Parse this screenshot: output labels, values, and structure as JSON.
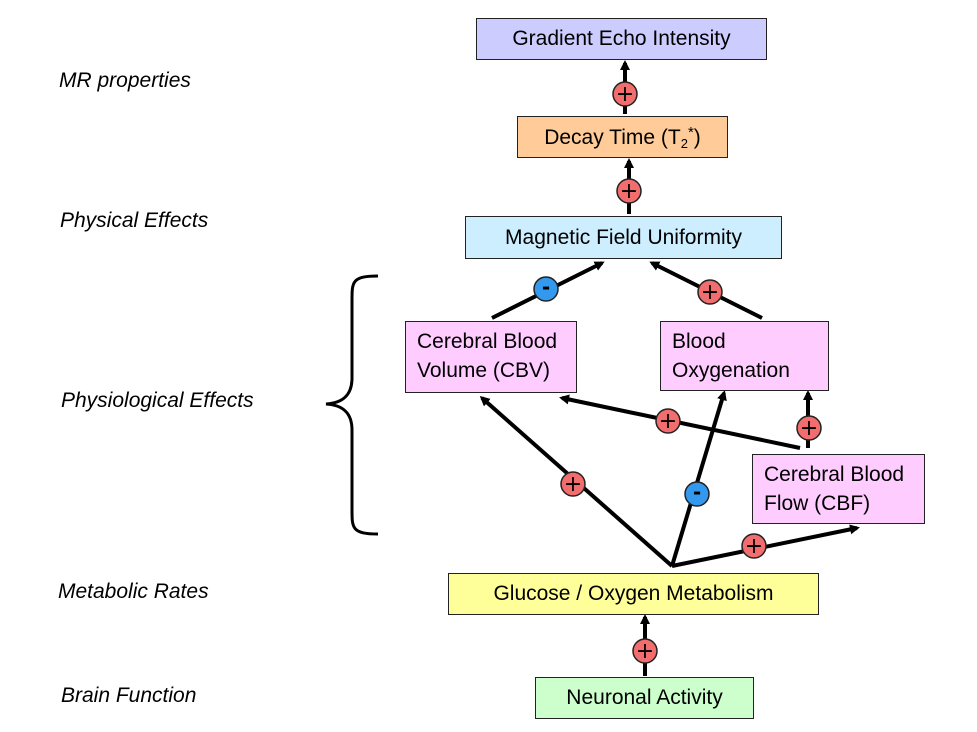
{
  "categories": {
    "mr": "MR properties",
    "physical": "Physical Effects",
    "physiological": "Physiological Effects",
    "metabolic": "Metabolic Rates",
    "brain": "Brain Function"
  },
  "nodes": {
    "gradient": "Gradient Echo Intensity",
    "decay": {
      "prefix": "Decay Time (T",
      "sub": "2",
      "sup": "*",
      "suffix": ")"
    },
    "magnetic": "Magnetic Field Uniformity",
    "cbv": [
      "Cerebral Blood",
      "Volume (CBV)"
    ],
    "oxygenation": [
      "Blood",
      "Oxygenation"
    ],
    "cbf": [
      "Cerebral Blood",
      "Flow (CBF)"
    ],
    "glucose": "Glucose / Oxygen Metabolism",
    "neuronal": "Neuronal Activity"
  },
  "effects": {
    "neuronal_to_glucose": "+",
    "glucose_to_cbv": "+",
    "glucose_to_oxygenation": "-",
    "glucose_to_cbf": "+",
    "cbf_to_cbv": "+",
    "cbf_to_oxygenation": "+",
    "cbv_to_magnetic": "-",
    "oxygenation_to_magnetic": "+",
    "magnetic_to_decay": "+",
    "decay_to_gradient": "+"
  },
  "colors": {
    "positive": "#f26e6e",
    "negative": "#3399ee"
  }
}
